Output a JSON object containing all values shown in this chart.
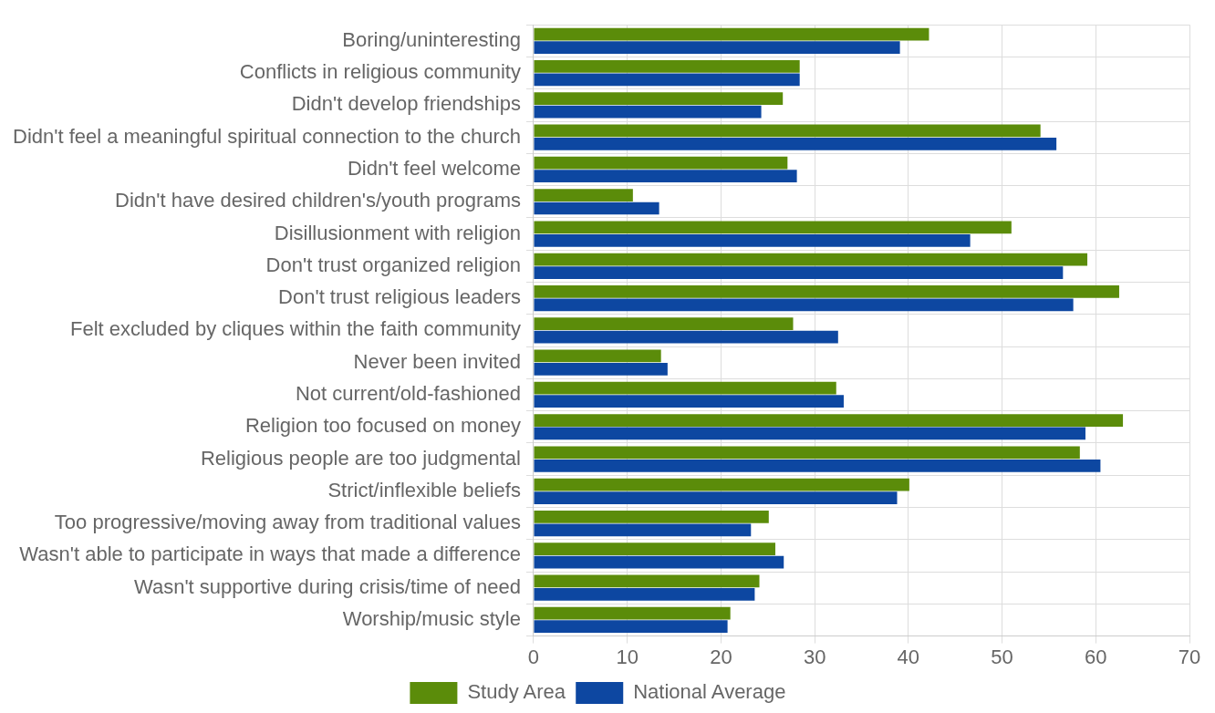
{
  "chart_data": {
    "type": "bar",
    "orientation": "horizontal",
    "categories": [
      "Boring/uninteresting",
      "Conflicts in religious community",
      "Didn't develop friendships",
      "Didn't feel a meaningful spiritual connection to the church",
      "Didn't feel welcome",
      "Didn't have desired children's/youth programs",
      "Disillusionment with religion",
      "Don't trust organized religion",
      "Don't trust religious leaders",
      "Felt excluded by cliques within the faith community",
      "Never been invited",
      "Not current/old-fashioned",
      "Religion too focused on money",
      "Religious people are too judgmental",
      "Strict/inflexible beliefs",
      "Too progressive/moving away from traditional values",
      "Wasn't able to participate in ways that made a difference",
      "Wasn't supportive during crisis/time of need",
      "Worship/music style"
    ],
    "series": [
      {
        "name": "Study Area",
        "color": "#5b8c0a",
        "values": [
          42.2,
          28.4,
          26.6,
          54.1,
          27.1,
          10.6,
          51.0,
          59.1,
          62.5,
          27.7,
          13.6,
          32.3,
          62.9,
          58.3,
          40.1,
          25.1,
          25.8,
          24.1,
          21.0
        ]
      },
      {
        "name": "National Average",
        "color": "#0d47a1",
        "values": [
          39.1,
          28.4,
          24.3,
          55.8,
          28.1,
          13.4,
          46.6,
          56.5,
          57.6,
          32.5,
          14.3,
          33.1,
          58.9,
          60.5,
          38.8,
          23.2,
          26.7,
          23.6,
          20.7
        ]
      }
    ],
    "xlim": [
      0,
      70
    ],
    "xticks": [
      0,
      10,
      20,
      30,
      40,
      50,
      60,
      70
    ],
    "grid": true,
    "legend": "bottom"
  }
}
